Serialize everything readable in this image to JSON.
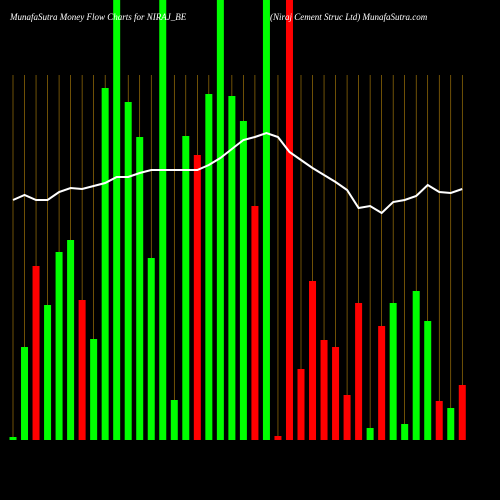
{
  "chart_data": {
    "type": "bar",
    "title": "MunafaSutra  Money Flow  Charts for NIRAJ_BE",
    "subtitle": "(Niraj Cement Struc Ltd) MunafaSutra.com",
    "categories": [
      null,
      null,
      null,
      null,
      null,
      null,
      null,
      null,
      null,
      null,
      null,
      null,
      null,
      null,
      null,
      null,
      null,
      null,
      null,
      null,
      null,
      null,
      null,
      null,
      null,
      null,
      null,
      null,
      null,
      null,
      null,
      null,
      null,
      null,
      null,
      null,
      null,
      null,
      null,
      null
    ],
    "values": [
      3,
      93,
      174,
      135,
      188,
      200,
      140,
      101,
      352,
      440,
      338,
      303,
      182,
      440,
      40,
      304,
      285,
      346,
      440,
      344,
      319,
      234,
      440,
      4,
      440,
      71,
      159,
      100,
      93,
      45,
      137,
      12,
      114,
      137,
      16,
      149,
      119,
      39,
      32,
      55
    ],
    "colors": [
      "#00ff00",
      "#00ff00",
      "#ff0000",
      "#00ff00",
      "#00ff00",
      "#00ff00",
      "#ff0000",
      "#00ff00",
      "#00ff00",
      "#00ff00",
      "#00ff00",
      "#00ff00",
      "#00ff00",
      "#00ff00",
      "#00ff00",
      "#00ff00",
      "#ff0000",
      "#00ff00",
      "#00ff00",
      "#00ff00",
      "#00ff00",
      "#ff0000",
      "#00ff00",
      "#ff0000",
      "#ff0000",
      "#ff0000",
      "#ff0000",
      "#ff0000",
      "#ff0000",
      "#ff0000",
      "#ff0000",
      "#00ff00",
      "#ff0000",
      "#00ff00",
      "#00ff00",
      "#00ff00",
      "#00ff00",
      "#ff0000",
      "#00ff00",
      "#ff0000"
    ],
    "line": {
      "color": "#ffffff",
      "values": [
        240,
        245,
        240,
        240,
        248,
        252,
        251,
        254,
        257,
        263,
        263,
        267,
        270,
        270,
        270,
        270,
        270,
        275,
        282,
        291,
        300,
        303,
        307,
        303,
        288,
        280,
        272,
        265,
        258,
        250,
        232,
        234,
        227,
        238,
        240,
        244,
        255,
        248,
        247,
        251
      ]
    },
    "ylim": [
      0,
      440
    ],
    "grid_color": "#b8860b"
  }
}
